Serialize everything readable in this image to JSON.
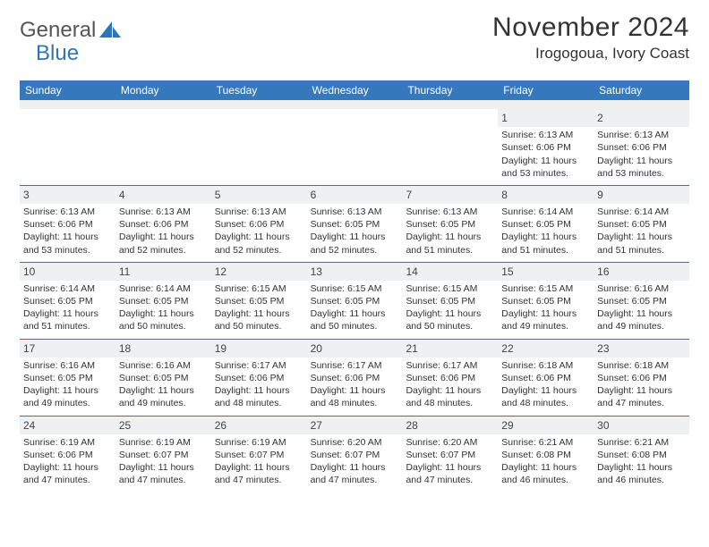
{
  "brand": {
    "word1": "General",
    "word2": "Blue"
  },
  "title": "November 2024",
  "location": "Irogogoua, Ivory Coast",
  "header_color": "#3678bc",
  "rule_color": "#2f74b5",
  "daynum_bg": "#eef0f2",
  "text_color": "#333333",
  "weekdays": [
    "Sunday",
    "Monday",
    "Tuesday",
    "Wednesday",
    "Thursday",
    "Friday",
    "Saturday"
  ],
  "weeks": [
    [
      {
        "empty": true
      },
      {
        "empty": true
      },
      {
        "empty": true
      },
      {
        "empty": true
      },
      {
        "empty": true
      },
      {
        "day": "1",
        "sunrise": "Sunrise: 6:13 AM",
        "sunset": "Sunset: 6:06 PM",
        "daylight": "Daylight: 11 hours and 53 minutes."
      },
      {
        "day": "2",
        "sunrise": "Sunrise: 6:13 AM",
        "sunset": "Sunset: 6:06 PM",
        "daylight": "Daylight: 11 hours and 53 minutes."
      }
    ],
    [
      {
        "day": "3",
        "sunrise": "Sunrise: 6:13 AM",
        "sunset": "Sunset: 6:06 PM",
        "daylight": "Daylight: 11 hours and 53 minutes."
      },
      {
        "day": "4",
        "sunrise": "Sunrise: 6:13 AM",
        "sunset": "Sunset: 6:06 PM",
        "daylight": "Daylight: 11 hours and 52 minutes."
      },
      {
        "day": "5",
        "sunrise": "Sunrise: 6:13 AM",
        "sunset": "Sunset: 6:06 PM",
        "daylight": "Daylight: 11 hours and 52 minutes."
      },
      {
        "day": "6",
        "sunrise": "Sunrise: 6:13 AM",
        "sunset": "Sunset: 6:05 PM",
        "daylight": "Daylight: 11 hours and 52 minutes."
      },
      {
        "day": "7",
        "sunrise": "Sunrise: 6:13 AM",
        "sunset": "Sunset: 6:05 PM",
        "daylight": "Daylight: 11 hours and 51 minutes."
      },
      {
        "day": "8",
        "sunrise": "Sunrise: 6:14 AM",
        "sunset": "Sunset: 6:05 PM",
        "daylight": "Daylight: 11 hours and 51 minutes."
      },
      {
        "day": "9",
        "sunrise": "Sunrise: 6:14 AM",
        "sunset": "Sunset: 6:05 PM",
        "daylight": "Daylight: 11 hours and 51 minutes."
      }
    ],
    [
      {
        "day": "10",
        "sunrise": "Sunrise: 6:14 AM",
        "sunset": "Sunset: 6:05 PM",
        "daylight": "Daylight: 11 hours and 51 minutes."
      },
      {
        "day": "11",
        "sunrise": "Sunrise: 6:14 AM",
        "sunset": "Sunset: 6:05 PM",
        "daylight": "Daylight: 11 hours and 50 minutes."
      },
      {
        "day": "12",
        "sunrise": "Sunrise: 6:15 AM",
        "sunset": "Sunset: 6:05 PM",
        "daylight": "Daylight: 11 hours and 50 minutes."
      },
      {
        "day": "13",
        "sunrise": "Sunrise: 6:15 AM",
        "sunset": "Sunset: 6:05 PM",
        "daylight": "Daylight: 11 hours and 50 minutes."
      },
      {
        "day": "14",
        "sunrise": "Sunrise: 6:15 AM",
        "sunset": "Sunset: 6:05 PM",
        "daylight": "Daylight: 11 hours and 50 minutes."
      },
      {
        "day": "15",
        "sunrise": "Sunrise: 6:15 AM",
        "sunset": "Sunset: 6:05 PM",
        "daylight": "Daylight: 11 hours and 49 minutes."
      },
      {
        "day": "16",
        "sunrise": "Sunrise: 6:16 AM",
        "sunset": "Sunset: 6:05 PM",
        "daylight": "Daylight: 11 hours and 49 minutes."
      }
    ],
    [
      {
        "day": "17",
        "sunrise": "Sunrise: 6:16 AM",
        "sunset": "Sunset: 6:05 PM",
        "daylight": "Daylight: 11 hours and 49 minutes."
      },
      {
        "day": "18",
        "sunrise": "Sunrise: 6:16 AM",
        "sunset": "Sunset: 6:05 PM",
        "daylight": "Daylight: 11 hours and 49 minutes."
      },
      {
        "day": "19",
        "sunrise": "Sunrise: 6:17 AM",
        "sunset": "Sunset: 6:06 PM",
        "daylight": "Daylight: 11 hours and 48 minutes."
      },
      {
        "day": "20",
        "sunrise": "Sunrise: 6:17 AM",
        "sunset": "Sunset: 6:06 PM",
        "daylight": "Daylight: 11 hours and 48 minutes."
      },
      {
        "day": "21",
        "sunrise": "Sunrise: 6:17 AM",
        "sunset": "Sunset: 6:06 PM",
        "daylight": "Daylight: 11 hours and 48 minutes."
      },
      {
        "day": "22",
        "sunrise": "Sunrise: 6:18 AM",
        "sunset": "Sunset: 6:06 PM",
        "daylight": "Daylight: 11 hours and 48 minutes."
      },
      {
        "day": "23",
        "sunrise": "Sunrise: 6:18 AM",
        "sunset": "Sunset: 6:06 PM",
        "daylight": "Daylight: 11 hours and 47 minutes."
      }
    ],
    [
      {
        "day": "24",
        "sunrise": "Sunrise: 6:19 AM",
        "sunset": "Sunset: 6:06 PM",
        "daylight": "Daylight: 11 hours and 47 minutes."
      },
      {
        "day": "25",
        "sunrise": "Sunrise: 6:19 AM",
        "sunset": "Sunset: 6:07 PM",
        "daylight": "Daylight: 11 hours and 47 minutes."
      },
      {
        "day": "26",
        "sunrise": "Sunrise: 6:19 AM",
        "sunset": "Sunset: 6:07 PM",
        "daylight": "Daylight: 11 hours and 47 minutes."
      },
      {
        "day": "27",
        "sunrise": "Sunrise: 6:20 AM",
        "sunset": "Sunset: 6:07 PM",
        "daylight": "Daylight: 11 hours and 47 minutes."
      },
      {
        "day": "28",
        "sunrise": "Sunrise: 6:20 AM",
        "sunset": "Sunset: 6:07 PM",
        "daylight": "Daylight: 11 hours and 47 minutes."
      },
      {
        "day": "29",
        "sunrise": "Sunrise: 6:21 AM",
        "sunset": "Sunset: 6:08 PM",
        "daylight": "Daylight: 11 hours and 46 minutes."
      },
      {
        "day": "30",
        "sunrise": "Sunrise: 6:21 AM",
        "sunset": "Sunset: 6:08 PM",
        "daylight": "Daylight: 11 hours and 46 minutes."
      }
    ]
  ]
}
